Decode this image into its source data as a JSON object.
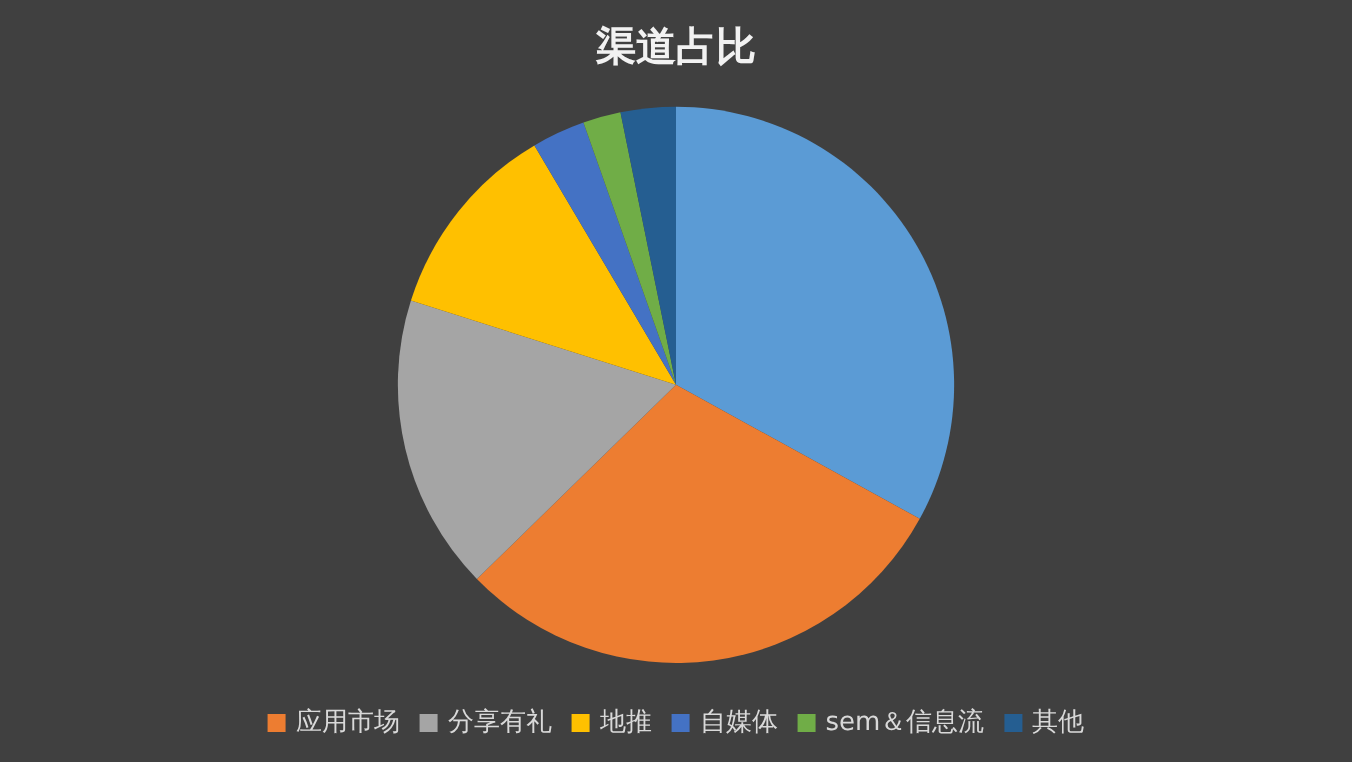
{
  "chart_data": {
    "type": "pie",
    "title": "渠道占比",
    "categories": [
      null,
      "应用市场",
      "分享有礼",
      "地推",
      "自媒体",
      "sem＆信息流",
      "其他"
    ],
    "values": [
      33,
      29.7,
      17.2,
      11.6,
      3.1,
      2.2,
      3.2
    ],
    "colors": [
      "#5b9bd5",
      "#ed7d31",
      "#a5a5a5",
      "#ffc000",
      "#4472c4",
      "#70ad47",
      "#255e91"
    ],
    "legend": "bottom"
  }
}
